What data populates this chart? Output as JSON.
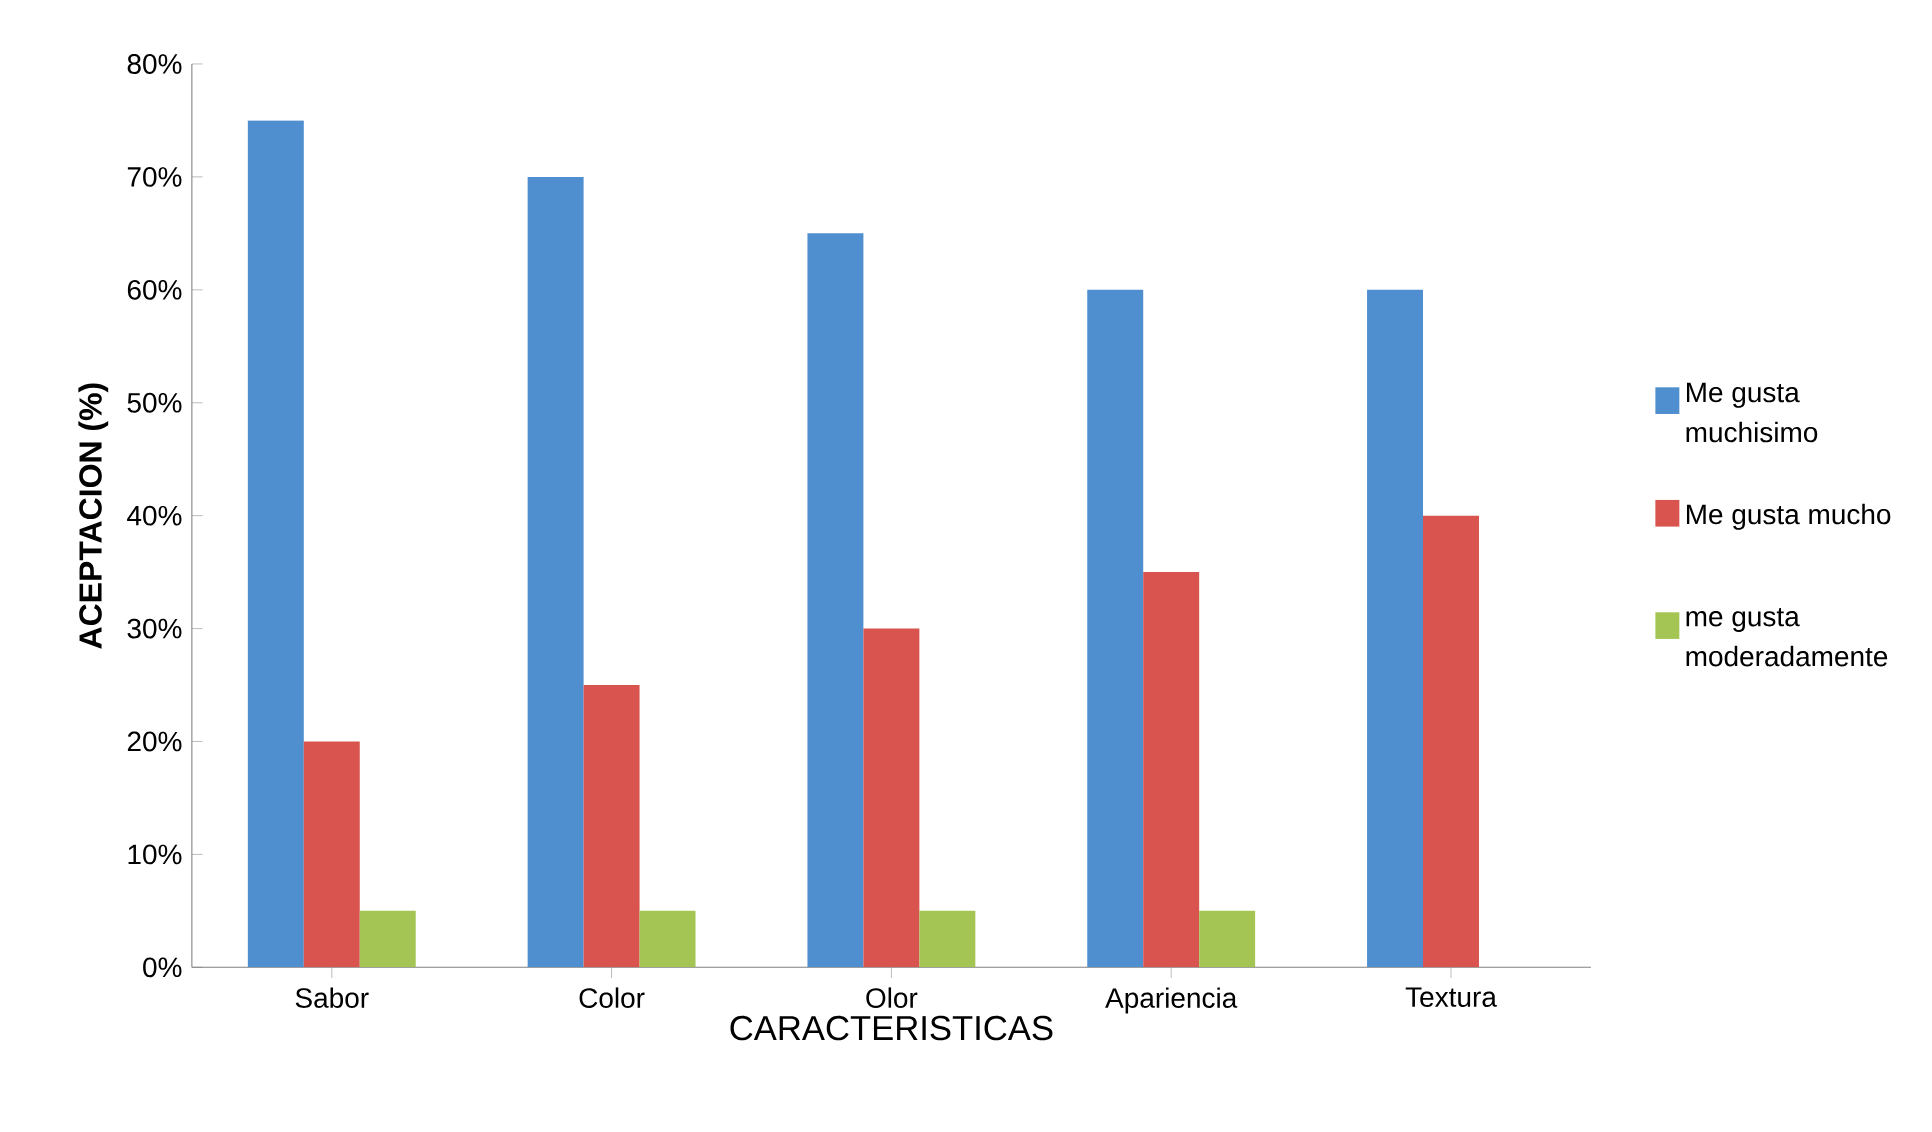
{
  "chart_data": {
    "type": "bar",
    "xlabel": "CARACTERISTICAS",
    "ylabel": "ACEPTACION (%)",
    "categories": [
      "Sabor",
      "Color",
      "Olor",
      "Apariencia",
      "Textura"
    ],
    "series": [
      {
        "name": "Me gusta muchisimo",
        "color": "#4f8fcf",
        "values": [
          75,
          70,
          65,
          60,
          60
        ]
      },
      {
        "name": "Me gusta mucho",
        "color": "#d9534f",
        "values": [
          20,
          25,
          30,
          35,
          40
        ]
      },
      {
        "name": "me gusta moderadamente",
        "color": "#a4c553",
        "values": [
          5,
          5,
          5,
          5,
          null
        ]
      }
    ],
    "ylim": [
      0,
      80
    ],
    "yticks": [
      {
        "value": 0,
        "label": "0%"
      },
      {
        "value": 10,
        "label": "10%"
      },
      {
        "value": 20,
        "label": "20%"
      },
      {
        "value": 30,
        "label": "30%"
      },
      {
        "value": 40,
        "label": "40%"
      },
      {
        "value": 50,
        "label": "50%"
      },
      {
        "value": 60,
        "label": "60%"
      },
      {
        "value": 70,
        "label": "70%"
      },
      {
        "value": 80,
        "label": "80%"
      }
    ],
    "legend": "right",
    "grid": false
  }
}
